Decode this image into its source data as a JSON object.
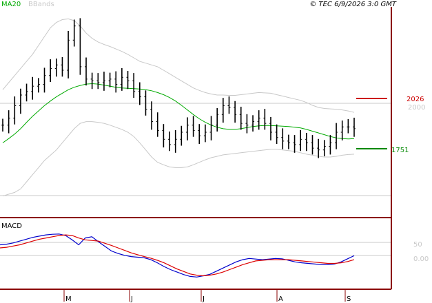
{
  "header": {
    "legend_ma": "MA20",
    "legend_bb": "BBands",
    "source": "© TEC 6/9/2026 3:0 GMT"
  },
  "levels": {
    "resistance": {
      "value": 2026,
      "label": "2026",
      "color": "#cc0000"
    },
    "support": {
      "value": 1751,
      "label": "1751",
      "color": "#008800"
    }
  },
  "colors": {
    "price": "#000000",
    "ma20": "#00aa00",
    "bbands": "#c8c8c8",
    "macd": "#0000cc",
    "signal": "#dd0000",
    "axis": "#8b0000"
  },
  "months": [
    "M",
    "J",
    "J",
    "A",
    "S"
  ],
  "price_axis": {
    "ticks": [
      {
        "value": 2000,
        "label": "2000"
      }
    ]
  },
  "macd_panel": {
    "label": "MACD",
    "ticks": [
      {
        "value": 50,
        "label": "50"
      },
      {
        "value": 0,
        "label": "0.00"
      }
    ]
  },
  "chart_data": [
    {
      "type": "ohlc",
      "title": "",
      "grid": true,
      "series": [
        {
          "name": "MA20",
          "values": [
            1800,
            1812,
            1825,
            1840,
            1858,
            1875,
            1890,
            1905,
            1918,
            1930,
            1940,
            1950,
            1957,
            1962,
            1966,
            1967,
            1966,
            1963,
            1960,
            1957,
            1955,
            1954,
            1953,
            1952,
            1950,
            1947,
            1942,
            1936,
            1928,
            1918,
            1906,
            1893,
            1880,
            1868,
            1858,
            1850,
            1844,
            1840,
            1838,
            1838,
            1840,
            1843,
            1846,
            1848,
            1849,
            1849,
            1848,
            1847,
            1846,
            1844,
            1842,
            1838,
            1833,
            1828,
            1823,
            1818,
            1814,
            1812,
            1811,
            1812
          ]
        },
        {
          "name": "BBands",
          "upper": [
            1950,
            1970,
            1990,
            2010,
            2030,
            2050,
            2075,
            2100,
            2125,
            2140,
            2148,
            2150,
            2145,
            2130,
            2110,
            2095,
            2085,
            2078,
            2072,
            2065,
            2058,
            2050,
            2040,
            2030,
            2025,
            2020,
            2015,
            2005,
            1995,
            1985,
            1975,
            1965,
            1955,
            1948,
            1942,
            1938,
            1935,
            1935,
            1934,
            1934,
            1936,
            1938,
            1940,
            1942,
            1941,
            1940,
            1936,
            1932,
            1928,
            1924,
            1920,
            1914,
            1906,
            1900,
            1897,
            1896,
            1895,
            1893,
            1890,
            1886
          ],
          "lower": [
            1650,
            1655,
            1660,
            1670,
            1690,
            1710,
            1730,
            1750,
            1765,
            1780,
            1800,
            1820,
            1840,
            1855,
            1860,
            1860,
            1858,
            1855,
            1850,
            1844,
            1838,
            1830,
            1818,
            1800,
            1780,
            1760,
            1745,
            1738,
            1732,
            1730,
            1730,
            1732,
            1738,
            1745,
            1752,
            1758,
            1762,
            1766,
            1768,
            1770,
            1772,
            1774,
            1776,
            1778,
            1780,
            1782,
            1782,
            1780,
            1778,
            1776,
            1772,
            1768,
            1765,
            1762,
            1760,
            1760,
            1762,
            1765,
            1767,
            1768
          ]
        },
        {
          "name": "Price",
          "close": [
            1850,
            1870,
            1905,
            1935,
            1945,
            1960,
            1965,
            1990,
            2010,
            2020,
            2005,
            2090,
            2130,
            2015,
            1980,
            1975,
            1970,
            1975,
            1980,
            1965,
            1985,
            1975,
            1945,
            1930,
            1895,
            1860,
            1835,
            1810,
            1795,
            1810,
            1830,
            1850,
            1835,
            1820,
            1830,
            1850,
            1880,
            1905,
            1900,
            1880,
            1855,
            1850,
            1860,
            1870,
            1855,
            1830,
            1815,
            1805,
            1800,
            1795,
            1810,
            1800,
            1785,
            1780,
            1790,
            1800,
            1830,
            1845,
            1845,
            1840
          ]
        }
      ],
      "ylim": [
        1620,
        2180
      ]
    },
    {
      "type": "line",
      "title": "",
      "grid": true,
      "series": [
        {
          "name": "MACD",
          "values": [
            40,
            42,
            46,
            52,
            58,
            64,
            68,
            72,
            74,
            75,
            70,
            56,
            40,
            62,
            66,
            50,
            35,
            20,
            12,
            6,
            2,
            0,
            -2,
            -8,
            -18,
            -30,
            -40,
            -48,
            -56,
            -62,
            -64,
            -60,
            -55,
            -45,
            -35,
            -25,
            -15,
            -8,
            -4,
            -6,
            -8,
            -6,
            -4,
            -5,
            -10,
            -15,
            -18,
            -20,
            -22,
            -24,
            -24,
            -22,
            -15,
            -5,
            5
          ]
        },
        {
          "name": "Signal",
          "values": [
            30,
            32,
            36,
            40,
            46,
            52,
            58,
            62,
            66,
            70,
            72,
            70,
            62,
            56,
            54,
            52,
            45,
            38,
            30,
            22,
            14,
            8,
            2,
            -3,
            -10,
            -18,
            -28,
            -38,
            -46,
            -54,
            -58,
            -60,
            -58,
            -54,
            -48,
            -40,
            -32,
            -24,
            -18,
            -12,
            -10,
            -8,
            -8,
            -8,
            -8,
            -10,
            -12,
            -14,
            -16,
            -18,
            -20,
            -20,
            -18,
            -14,
            -8
          ]
        }
      ],
      "ylim": [
        -90,
        110
      ]
    }
  ]
}
